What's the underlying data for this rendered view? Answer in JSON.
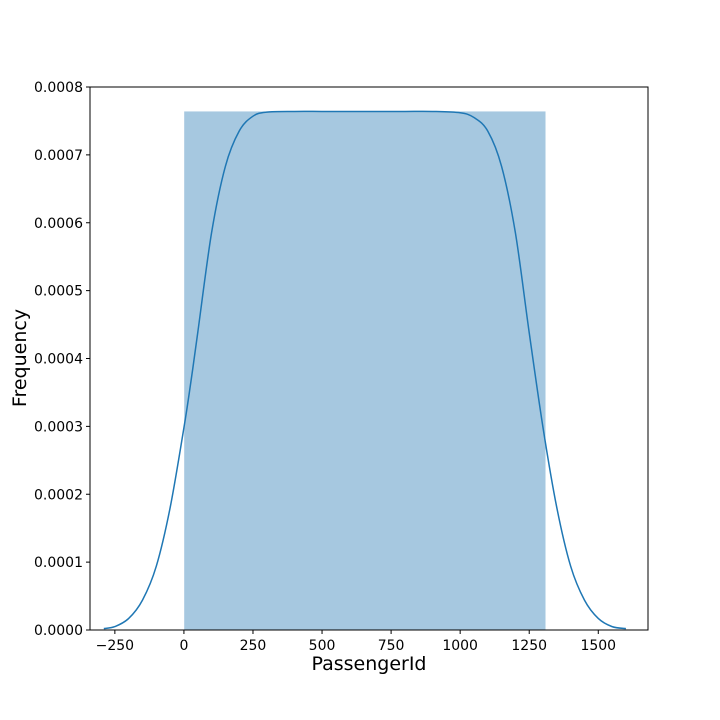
{
  "chart_data": {
    "type": "bar",
    "title": "",
    "xlabel": "PassengerId",
    "ylabel": "Frequency",
    "xlim": [
      -340,
      1680
    ],
    "ylim": [
      0,
      0.0008
    ],
    "x_ticks": [
      -250,
      0,
      250,
      500,
      750,
      1000,
      1250,
      1500
    ],
    "x_tick_labels": [
      "−250",
      "0",
      "250",
      "500",
      "750",
      "1000",
      "1250",
      "1500"
    ],
    "y_ticks": [
      0,
      0.0001,
      0.0002,
      0.0003,
      0.0004,
      0.0005,
      0.0006,
      0.0007,
      0.0008
    ],
    "y_tick_labels": [
      "0.0000",
      "0.0001",
      "0.0002",
      "0.0003",
      "0.0004",
      "0.0005",
      "0.0006",
      "0.0007",
      "0.0008"
    ],
    "grid": false,
    "legend": "none",
    "histogram": {
      "bins": [
        {
          "start": 1,
          "end": 1309,
          "density": 0.000764
        }
      ],
      "color": "#a6c8e0"
    },
    "kde": {
      "color": "#1f77b4",
      "x": [
        -290,
        -250,
        -200,
        -150,
        -100,
        -50,
        0,
        25,
        50,
        100,
        150,
        200,
        250,
        300,
        400,
        500,
        600,
        700,
        800,
        900,
        1000,
        1050,
        1100,
        1150,
        1200,
        1250,
        1300,
        1350,
        1400,
        1450,
        1500,
        1550,
        1600
      ],
      "y": [
        2e-06,
        5e-06,
        1.7e-05,
        4.4e-05,
        9.4e-05,
        0.00018,
        0.000298,
        0.000365,
        0.000438,
        0.000585,
        0.000683,
        0.000735,
        0.000757,
        0.000763,
        0.000764,
        0.000764,
        0.000764,
        0.000764,
        0.000764,
        0.000764,
        0.000762,
        0.000755,
        0.000735,
        0.000683,
        0.000585,
        0.000438,
        0.000298,
        0.00018,
        9.4e-05,
        4.4e-05,
        1.7e-05,
        5e-06,
        2e-06
      ]
    }
  }
}
